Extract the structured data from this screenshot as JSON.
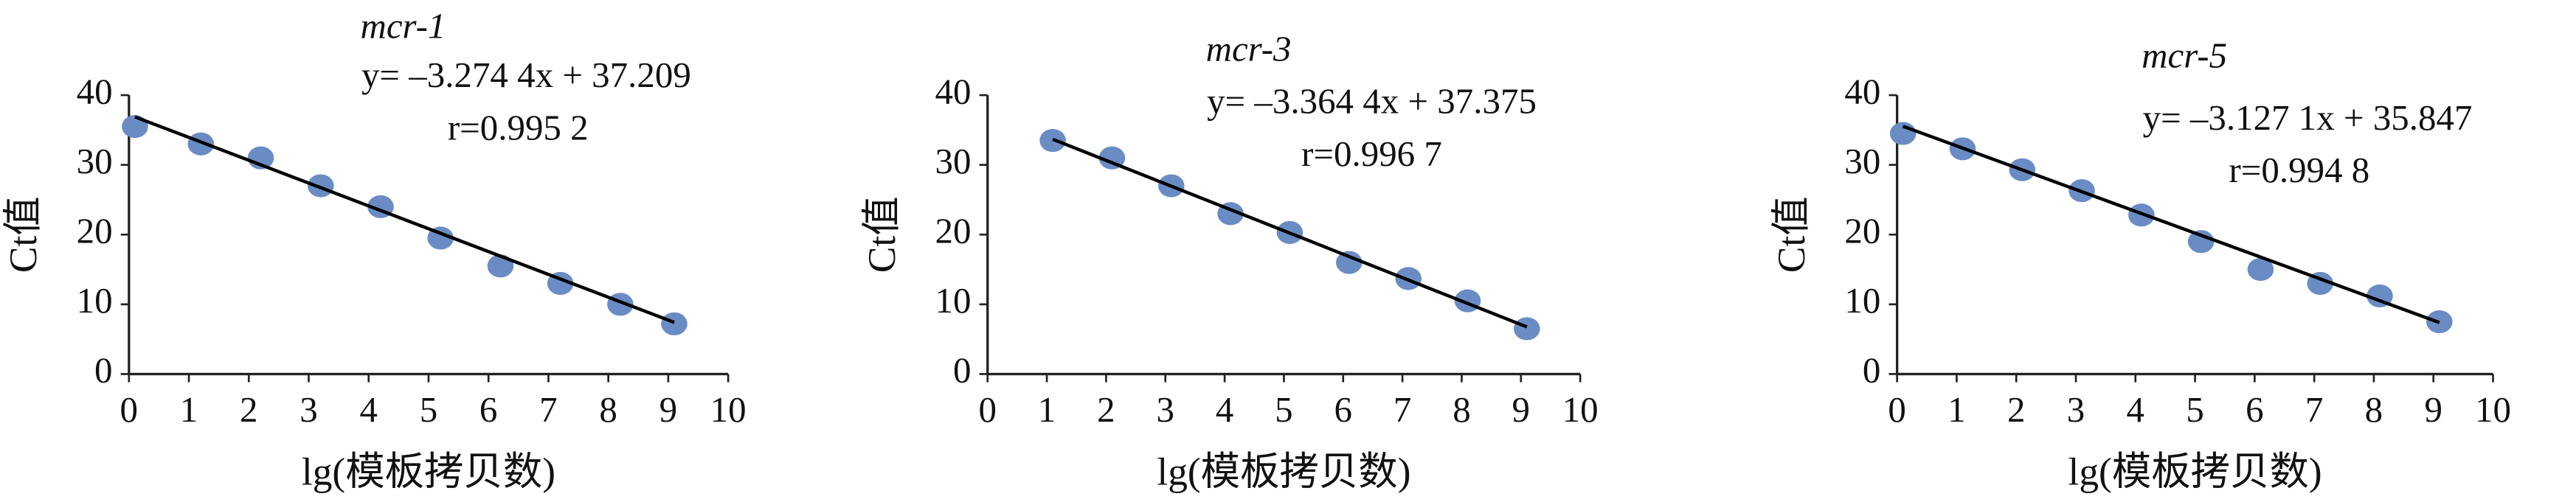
{
  "chart_data": [
    {
      "type": "scatter",
      "title": "mcr-1",
      "xlabel": "lg(模板拷贝数)",
      "ylabel": "Ct值",
      "x": [
        0.1,
        1.2,
        2.2,
        3.2,
        4.2,
        5.2,
        6.2,
        7.2,
        8.2,
        9.1
      ],
      "values": [
        35.5,
        33,
        31,
        27,
        24,
        19.5,
        15.5,
        13,
        10,
        7.2
      ],
      "color": "#6a8cc4",
      "xlim": [
        0,
        10
      ],
      "ylim": [
        0,
        40
      ],
      "xticks": [
        0,
        1,
        2,
        3,
        4,
        5,
        6,
        7,
        8,
        9,
        10
      ],
      "yticks": [
        0,
        10,
        20,
        30,
        40
      ],
      "trendline": {
        "slope": -3.2744,
        "intercept": 37.209,
        "label": "y= –3.274 4x + 37.209"
      },
      "r": {
        "value": 0.9952,
        "label": "r=0.995 2"
      }
    },
    {
      "type": "scatter",
      "title": "mcr-3",
      "xlabel": "lg(模板拷贝数)",
      "ylabel": "Ct值",
      "x": [
        1.1,
        2.1,
        3.1,
        4.1,
        5.1,
        6.1,
        7.1,
        8.1,
        9.1
      ],
      "values": [
        33.5,
        31,
        27,
        23,
        20.3,
        16,
        13.7,
        10.5,
        6.5
      ],
      "color": "#6a8cc4",
      "xlim": [
        0,
        10
      ],
      "ylim": [
        0,
        40
      ],
      "xticks": [
        0,
        1,
        2,
        3,
        4,
        5,
        6,
        7,
        8,
        9,
        10
      ],
      "yticks": [
        0,
        10,
        20,
        30,
        40
      ],
      "trendline": {
        "slope": -3.3644,
        "intercept": 37.375,
        "label": "y= –3.364 4x + 37.375"
      },
      "r": {
        "value": 0.9967,
        "label": "r=0.996 7"
      }
    },
    {
      "type": "scatter",
      "title": "mcr-5",
      "xlabel": "lg(模板拷贝数)",
      "ylabel": "Ct值",
      "x": [
        0.1,
        1.1,
        2.1,
        3.1,
        4.1,
        5.1,
        6.1,
        7.1,
        8.1,
        9.1
      ],
      "values": [
        34.5,
        32.3,
        29.3,
        26.3,
        22.8,
        19,
        15,
        13,
        11.2,
        7.5
      ],
      "color": "#6a8cc4",
      "xlim": [
        0,
        10
      ],
      "ylim": [
        0,
        40
      ],
      "xticks": [
        0,
        1,
        2,
        3,
        4,
        5,
        6,
        7,
        8,
        9,
        10
      ],
      "yticks": [
        0,
        10,
        20,
        30,
        40
      ],
      "trendline": {
        "slope": -3.1271,
        "intercept": 35.847,
        "label": "y= –3.127 1x + 35.847"
      },
      "r": {
        "value": 0.9948,
        "label": "r=0.994 8"
      }
    }
  ]
}
